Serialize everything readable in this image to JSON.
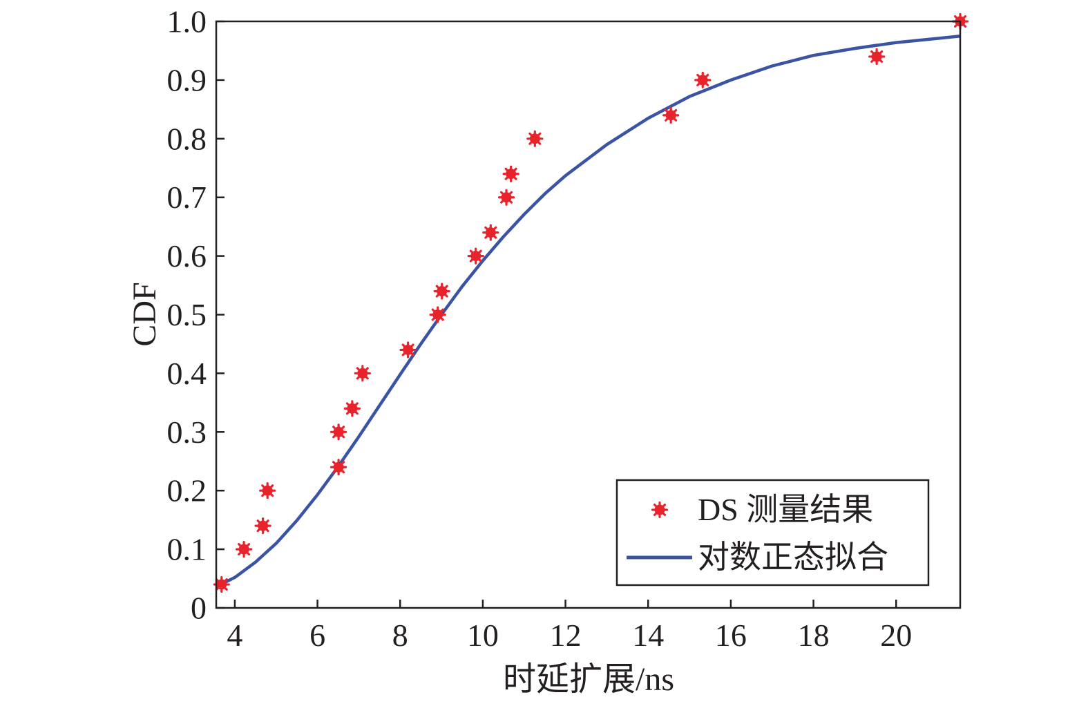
{
  "chart_data": {
    "type": "scatter",
    "xlabel": "时延扩展/ns",
    "ylabel": "CDF",
    "xlim": [
      3.55,
      21.55
    ],
    "ylim": [
      0,
      1.0
    ],
    "xticks": [
      4,
      6,
      8,
      10,
      12,
      14,
      16,
      18,
      20
    ],
    "xtick_labels": [
      "4",
      "6",
      "8",
      "10",
      "12",
      "14",
      "16",
      "18",
      "20"
    ],
    "yticks": [
      0,
      0.1,
      0.2,
      0.3,
      0.4,
      0.5,
      0.6,
      0.7,
      0.8,
      0.9,
      1.0
    ],
    "ytick_labels": [
      "0",
      "0.1",
      "0.2",
      "0.3",
      "0.4",
      "0.5",
      "0.6",
      "0.7",
      "0.8",
      "0.9",
      "1.0"
    ],
    "grid": false,
    "legend_position": "bottom-right",
    "series": [
      {
        "name": "DS 测量结果",
        "kind": "scatter",
        "marker": "asterisk",
        "color": "#e8232b",
        "points": [
          [
            3.68,
            0.04
          ],
          [
            4.22,
            0.1
          ],
          [
            4.68,
            0.14
          ],
          [
            4.79,
            0.2
          ],
          [
            6.51,
            0.24
          ],
          [
            6.51,
            0.3
          ],
          [
            6.84,
            0.34
          ],
          [
            7.09,
            0.4
          ],
          [
            8.19,
            0.44
          ],
          [
            8.91,
            0.5
          ],
          [
            9.01,
            0.54
          ],
          [
            9.83,
            0.6
          ],
          [
            10.19,
            0.64
          ],
          [
            10.57,
            0.7
          ],
          [
            10.68,
            0.74
          ],
          [
            11.26,
            0.8
          ],
          [
            14.55,
            0.84
          ],
          [
            15.32,
            0.9
          ],
          [
            19.53,
            0.94
          ],
          [
            21.55,
            1.0
          ]
        ]
      },
      {
        "name": "对数正态拟合",
        "kind": "line",
        "color": "#3a53a4",
        "x": [
          3.55,
          4,
          4.5,
          5,
          5.5,
          6,
          6.5,
          7,
          7.5,
          8,
          8.5,
          9,
          9.5,
          10,
          10.5,
          11,
          11.5,
          12,
          13,
          14,
          15,
          16,
          17,
          18,
          19,
          20,
          21,
          21.55
        ],
        "y": [
          0.036,
          0.052,
          0.078,
          0.11,
          0.149,
          0.193,
          0.241,
          0.292,
          0.345,
          0.398,
          0.45,
          0.5,
          0.548,
          0.592,
          0.633,
          0.671,
          0.706,
          0.737,
          0.79,
          0.835,
          0.872,
          0.9,
          0.924,
          0.942,
          0.954,
          0.964,
          0.971,
          0.975
        ]
      }
    ]
  }
}
